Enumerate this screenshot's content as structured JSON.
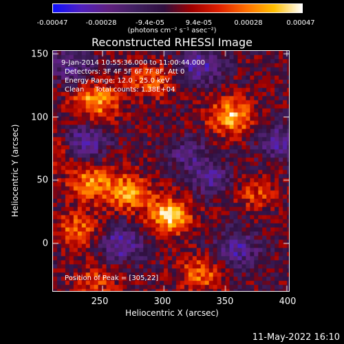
{
  "colorbar": {
    "tick_labels": [
      "-0.00047",
      "-0.00028",
      "-9.4e-05",
      "9.4e-05",
      "0.00028",
      "0.00047"
    ],
    "tick_values": [
      -0.00047,
      -0.00028,
      -9.4e-05,
      9.4e-05,
      0.00028,
      0.00047
    ],
    "range": [
      -0.00047,
      0.00047
    ],
    "units": "(photons cm⁻² s⁻¹ asec⁻²)",
    "colormap": [
      "#1010ff",
      "#5020c0",
      "#602080",
      "#402060",
      "#301040",
      "#a00000",
      "#e02000",
      "#ff7000",
      "#ffc000",
      "#ffffff"
    ]
  },
  "title": "Reconstructed RHESSI Image",
  "annotations": {
    "time": "9-Jan-2014 10:55:36.000 to 11:00:44.000",
    "detectors": "Detectors: 3F 4F 5F 6F 7F 8F, Att 0",
    "energy": "Energy Range: 12.0 - 25.0 keV",
    "clean": "Clean     Total counts: 1.38E+04",
    "peak": "Position of Peak = [305,22]"
  },
  "axes": {
    "xlabel": "Heliocentric X (arcsec)",
    "ylabel": "Heliocentric Y (arcsec)",
    "xlim": [
      210,
      402
    ],
    "ylim": [
      -38,
      152
    ],
    "xticks": [
      "250",
      "300",
      "350",
      "400"
    ],
    "xtick_values": [
      250,
      300,
      350,
      400
    ],
    "yticks": [
      "150",
      "100",
      "50",
      "0"
    ],
    "ytick_values": [
      150,
      100,
      50,
      0
    ]
  },
  "footer": {
    "timestamp": "11-May-2022 16:10"
  },
  "chart_data": {
    "type": "heatmap",
    "title": "Reconstructed RHESSI Image",
    "xlabel": "Heliocentric X (arcsec)",
    "ylabel": "Heliocentric Y (arcsec)",
    "x_range": [
      210,
      402
    ],
    "y_range": [
      -38,
      152
    ],
    "peak": [
      305,
      22
    ],
    "hotspots": [
      {
        "x": 305,
        "y": 22,
        "intensity": 1.0
      },
      {
        "x": 245,
        "y": 112,
        "intensity": 0.85
      },
      {
        "x": 355,
        "y": 100,
        "intensity": 0.9
      },
      {
        "x": 270,
        "y": 40,
        "intensity": 0.8
      },
      {
        "x": 240,
        "y": 48,
        "intensity": 0.7
      },
      {
        "x": 230,
        "y": 10,
        "intensity": 0.6
      },
      {
        "x": 290,
        "y": 128,
        "intensity": 0.55
      },
      {
        "x": 330,
        "y": -25,
        "intensity": 0.6
      },
      {
        "x": 245,
        "y": -30,
        "intensity": 0.45
      },
      {
        "x": 375,
        "y": 40,
        "intensity": 0.45
      },
      {
        "x": 215,
        "y": 75,
        "intensity": 0.4
      }
    ],
    "coldspots": [
      {
        "x": 235,
        "y": 80,
        "intensity": -0.7
      },
      {
        "x": 265,
        "y": 0,
        "intensity": -0.75
      },
      {
        "x": 330,
        "y": 140,
        "intensity": -0.7
      },
      {
        "x": 395,
        "y": 80,
        "intensity": -0.6
      },
      {
        "x": 225,
        "y": 140,
        "intensity": -0.5
      },
      {
        "x": 360,
        "y": -5,
        "intensity": -0.6
      },
      {
        "x": 320,
        "y": 70,
        "intensity": -0.45
      },
      {
        "x": 340,
        "y": 50,
        "intensity": -0.5
      }
    ]
  }
}
